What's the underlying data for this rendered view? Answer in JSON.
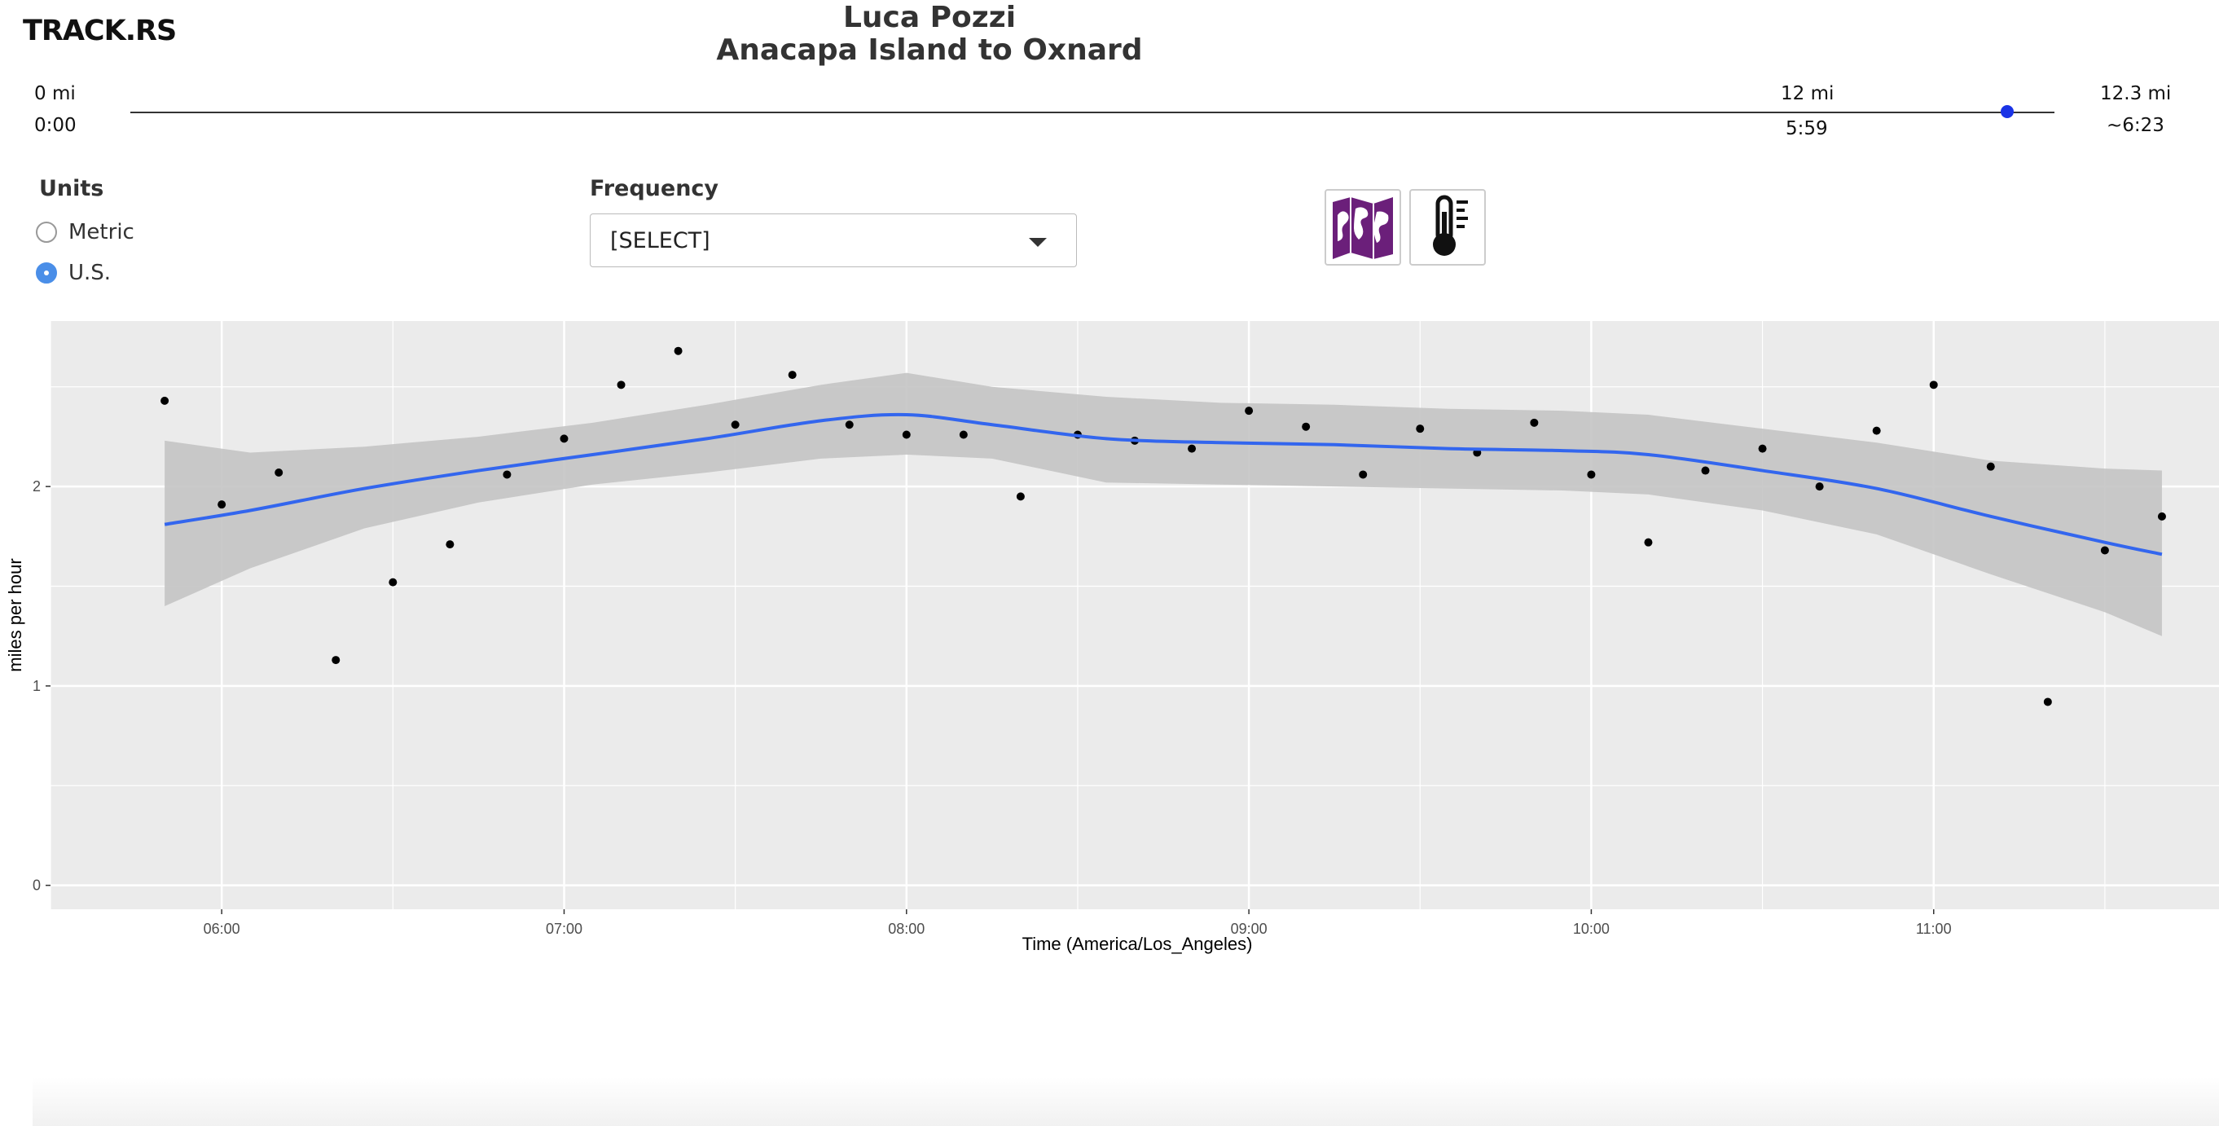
{
  "app": {
    "logo": "TRACK.RS"
  },
  "header": {
    "name": "Luca Pozzi",
    "route": "Anacapa Island to Oxnard"
  },
  "timeline": {
    "start_distance": "0 mi",
    "start_time": "0:00",
    "current_distance": "12 mi",
    "current_time": "5:59",
    "end_distance": "12.3 mi",
    "end_time": "~6:23",
    "progress_fraction": 0.9756,
    "thumb_color": "#1a33e6"
  },
  "units": {
    "label": "Units",
    "options": [
      {
        "label": "Metric",
        "checked": false
      },
      {
        "label": "U.S.",
        "checked": true
      }
    ]
  },
  "frequency": {
    "label": "Frequency",
    "selected": "[SELECT]"
  },
  "buttons": [
    {
      "name": "map-button",
      "icon": "map-icon",
      "color": "#6b1f7a"
    },
    {
      "name": "temperature-button",
      "icon": "thermometer-icon",
      "color": "#111111"
    }
  ],
  "chart_data": {
    "type": "scatter",
    "xlabel": "Time (America/Los_Angeles)",
    "ylabel": "miles per hour",
    "x_ticks": [
      "06:00",
      "07:00",
      "08:00",
      "09:00",
      "10:00",
      "11:00"
    ],
    "y_ticks": [
      "0",
      "1",
      "2"
    ],
    "xlim": [
      "05:30",
      "11:50"
    ],
    "ylim": [
      -0.12,
      2.83
    ],
    "grid": true,
    "points_x": [
      "05:50",
      "06:00",
      "06:10",
      "06:20",
      "06:30",
      "06:40",
      "06:50",
      "07:00",
      "07:10",
      "07:20",
      "07:30",
      "07:40",
      "07:50",
      "08:00",
      "08:10",
      "08:20",
      "08:30",
      "08:40",
      "08:50",
      "09:00",
      "09:10",
      "09:20",
      "09:30",
      "09:40",
      "09:50",
      "10:00",
      "10:10",
      "10:20",
      "10:30",
      "10:40",
      "10:50",
      "11:00",
      "11:10",
      "11:20",
      "11:30",
      "11:40"
    ],
    "points_y": [
      2.43,
      1.91,
      2.07,
      1.13,
      1.52,
      1.71,
      2.06,
      2.24,
      2.51,
      2.68,
      2.31,
      2.56,
      2.31,
      2.26,
      2.26,
      1.95,
      2.26,
      2.23,
      2.19,
      2.38,
      2.3,
      2.06,
      2.29,
      2.17,
      2.32,
      2.06,
      1.72,
      2.08,
      2.19,
      2.0,
      2.28,
      2.51,
      2.1,
      0.92,
      1.68,
      1.85
    ],
    "smooth": {
      "x": [
        "05:50",
        "06:05",
        "06:25",
        "06:45",
        "07:05",
        "07:25",
        "07:45",
        "08:00",
        "08:15",
        "08:35",
        "08:55",
        "09:15",
        "09:35",
        "09:55",
        "10:10",
        "10:30",
        "10:50",
        "11:10",
        "11:30",
        "11:40"
      ],
      "y": [
        1.81,
        1.88,
        1.99,
        2.08,
        2.16,
        2.24,
        2.33,
        2.36,
        2.31,
        2.24,
        2.22,
        2.21,
        2.19,
        2.18,
        2.16,
        2.08,
        1.99,
        1.85,
        1.72,
        1.66
      ],
      "lower": [
        1.4,
        1.59,
        1.79,
        1.92,
        2.01,
        2.07,
        2.14,
        2.16,
        2.14,
        2.02,
        2.01,
        2.0,
        1.99,
        1.98,
        1.96,
        1.88,
        1.76,
        1.56,
        1.37,
        1.25
      ],
      "upper": [
        2.23,
        2.17,
        2.2,
        2.25,
        2.32,
        2.41,
        2.51,
        2.57,
        2.5,
        2.45,
        2.42,
        2.41,
        2.39,
        2.38,
        2.36,
        2.29,
        2.22,
        2.13,
        2.09,
        2.08
      ]
    },
    "colors": {
      "panel": "#ebebeb",
      "grid": "#ffffff",
      "point": "#000000",
      "line": "#3366ee",
      "band": "#c4c4c4"
    }
  }
}
